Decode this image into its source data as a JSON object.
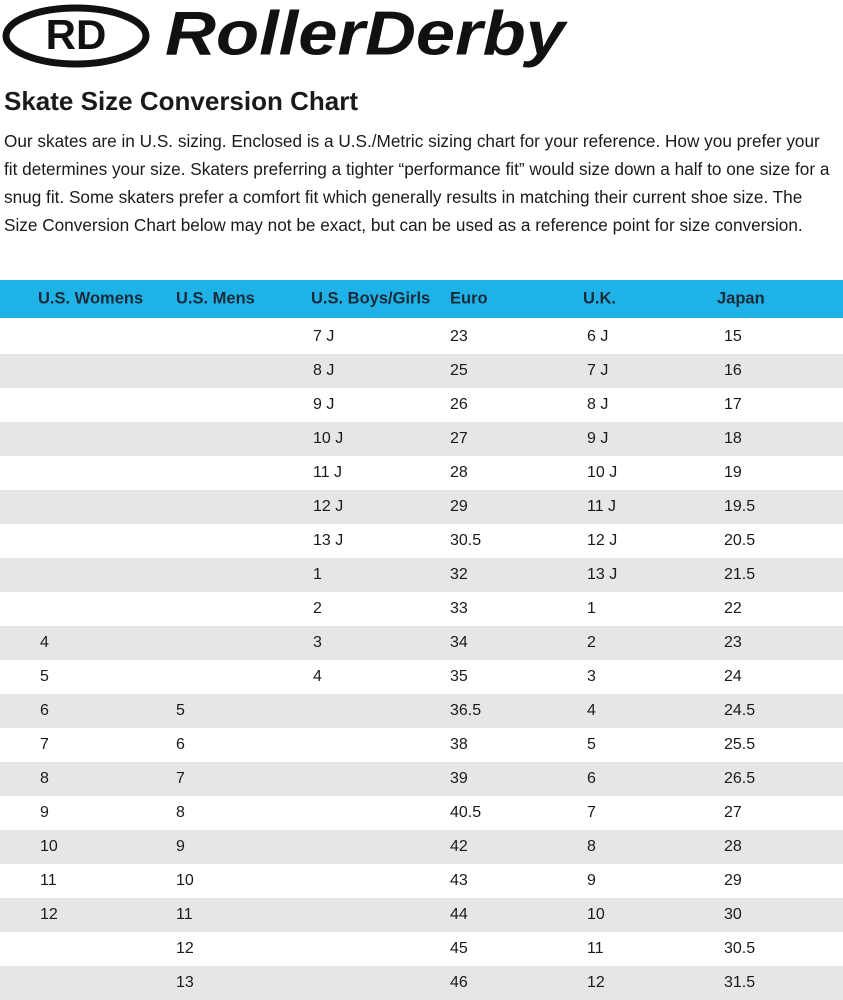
{
  "logo": {
    "mark": "RD",
    "name": "RollerDerby"
  },
  "header": {
    "title": "Skate Size Conversion Chart",
    "intro": "Our skates are in U.S. sizing. Enclosed is a U.S./Metric sizing chart for your reference. How you prefer your fit determines your size. Skaters preferring a tighter “performance fit” would size down a half to one size for a snug fit. Some skaters prefer a comfort fit which generally results in matching their current shoe size. The Size Conversion Chart below may not be exact, but can be used as a reference point for size conversion."
  },
  "table": {
    "columns": [
      "U.S. Womens",
      "U.S. Mens",
      "U.S. Boys/Girls",
      "Euro",
      "U.K.",
      "Japan"
    ],
    "rows": [
      [
        null,
        null,
        "7 J",
        "23",
        "6 J",
        "15"
      ],
      [
        null,
        null,
        "8 J",
        "25",
        "7 J",
        "16"
      ],
      [
        null,
        null,
        "9 J",
        "26",
        "8 J",
        "17"
      ],
      [
        null,
        null,
        "10 J",
        "27",
        "9 J",
        "18"
      ],
      [
        null,
        null,
        "11 J",
        "28",
        "10 J",
        "19"
      ],
      [
        null,
        null,
        "12 J",
        "29",
        "11 J",
        "19.5"
      ],
      [
        null,
        null,
        "13 J",
        "30.5",
        "12 J",
        "20.5"
      ],
      [
        null,
        null,
        "1",
        "32",
        "13 J",
        "21.5"
      ],
      [
        null,
        null,
        "2",
        "33",
        "1",
        "22"
      ],
      [
        "4",
        null,
        "3",
        "34",
        "2",
        "23"
      ],
      [
        "5",
        null,
        "4",
        "35",
        "3",
        "24"
      ],
      [
        "6",
        "5",
        null,
        "36.5",
        "4",
        "24.5"
      ],
      [
        "7",
        "6",
        null,
        "38",
        "5",
        "25.5"
      ],
      [
        "8",
        "7",
        null,
        "39",
        "6",
        "26.5"
      ],
      [
        "9",
        "8",
        null,
        "40.5",
        "7",
        "27"
      ],
      [
        "10",
        "9",
        null,
        "42",
        "8",
        "28"
      ],
      [
        "11",
        "10",
        null,
        "43",
        "9",
        "29"
      ],
      [
        "12",
        "11",
        null,
        "44",
        "10",
        "30"
      ],
      [
        null,
        "12",
        null,
        "45",
        "11",
        "30.5"
      ],
      [
        null,
        "13",
        null,
        "46",
        "12",
        "31.5"
      ]
    ]
  }
}
